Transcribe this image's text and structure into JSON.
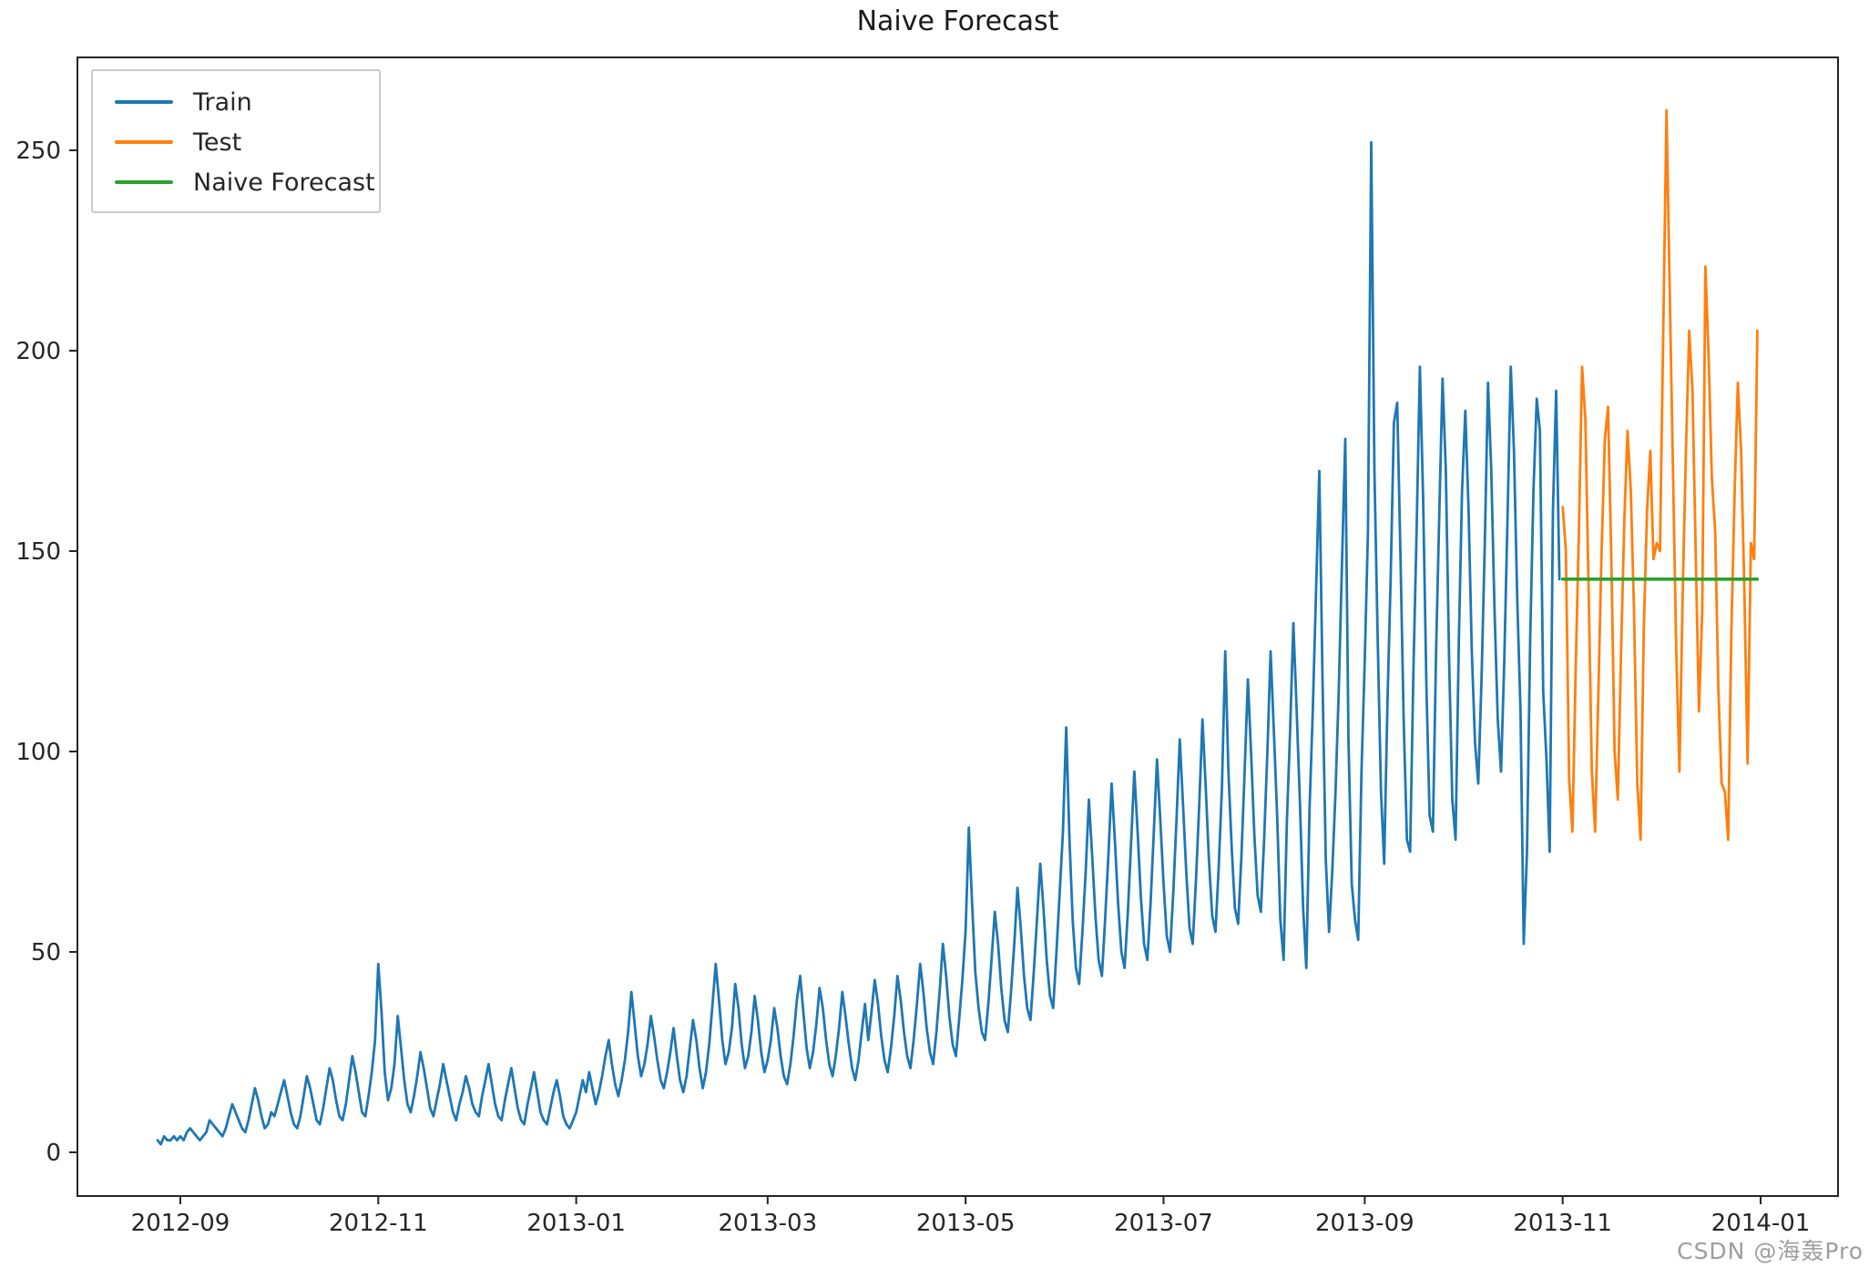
{
  "title": "Naive Forecast",
  "watermark": "CSDN @海轰Pro",
  "legend": {
    "items": [
      {
        "label": "Train",
        "color": "#1f77b4"
      },
      {
        "label": "Test",
        "color": "#ff7f0e"
      },
      {
        "label": "Naive Forecast",
        "color": "#2ca02c"
      }
    ]
  },
  "chart_data": {
    "type": "line",
    "title": "Naive Forecast",
    "xlabel": "",
    "ylabel": "",
    "grid": false,
    "legend_position": "upper left",
    "x_axis": {
      "start_date": "2012-08-25",
      "tick_labels": [
        "2012-09",
        "2012-11",
        "2013-01",
        "2013-03",
        "2013-05",
        "2013-07",
        "2013-09",
        "2013-11",
        "2014-01"
      ],
      "tick_day_offsets": [
        7,
        68,
        129,
        188,
        249,
        310,
        372,
        433,
        494
      ]
    },
    "y_axis": {
      "ticks": [
        0,
        50,
        100,
        150,
        200,
        250
      ],
      "ylim": [
        -11,
        273
      ]
    },
    "series": [
      {
        "name": "Train",
        "color": "#1f77b4",
        "start_day": 0,
        "values": [
          3,
          2,
          4,
          3,
          3,
          4,
          3,
          4,
          3,
          5,
          6,
          5,
          4,
          3,
          4,
          5,
          8,
          7,
          6,
          5,
          4,
          6,
          9,
          12,
          10,
          8,
          6,
          5,
          8,
          12,
          16,
          13,
          9,
          6,
          7,
          10,
          9,
          12,
          15,
          18,
          14,
          10,
          7,
          6,
          9,
          14,
          19,
          16,
          12,
          8,
          7,
          11,
          16,
          21,
          18,
          13,
          9,
          8,
          12,
          18,
          24,
          20,
          15,
          10,
          9,
          14,
          20,
          28,
          47,
          35,
          20,
          13,
          16,
          22,
          34,
          26,
          18,
          12,
          10,
          14,
          19,
          25,
          21,
          16,
          11,
          9,
          13,
          17,
          22,
          18,
          14,
          10,
          8,
          12,
          15,
          19,
          16,
          12,
          10,
          9,
          14,
          18,
          22,
          17,
          12,
          9,
          8,
          13,
          17,
          21,
          16,
          11,
          8,
          7,
          12,
          16,
          20,
          15,
          10,
          8,
          7,
          11,
          15,
          18,
          14,
          9,
          7,
          6,
          8,
          10,
          14,
          18,
          15,
          20,
          16,
          12,
          15,
          19,
          24,
          28,
          22,
          17,
          14,
          18,
          23,
          30,
          40,
          32,
          24,
          19,
          22,
          27,
          34,
          29,
          23,
          18,
          16,
          20,
          25,
          31,
          24,
          18,
          15,
          19,
          26,
          33,
          28,
          21,
          16,
          20,
          27,
          37,
          47,
          38,
          28,
          22,
          25,
          31,
          42,
          36,
          27,
          21,
          24,
          30,
          39,
          33,
          25,
          20,
          23,
          28,
          36,
          31,
          24,
          19,
          17,
          22,
          29,
          38,
          44,
          35,
          26,
          21,
          25,
          32,
          41,
          36,
          28,
          22,
          19,
          24,
          31,
          40,
          34,
          27,
          21,
          18,
          23,
          30,
          37,
          28,
          35,
          43,
          37,
          29,
          23,
          20,
          26,
          34,
          44,
          38,
          30,
          24,
          21,
          28,
          37,
          47,
          40,
          31,
          25,
          22,
          30,
          40,
          52,
          44,
          34,
          27,
          24,
          33,
          43,
          55,
          81,
          62,
          45,
          36,
          30,
          28,
          37,
          48,
          60,
          52,
          41,
          33,
          30,
          40,
          52,
          66,
          56,
          44,
          36,
          33,
          45,
          58,
          72,
          61,
          48,
          39,
          36,
          50,
          65,
          80,
          106,
          78,
          58,
          46,
          42,
          55,
          70,
          88,
          74,
          59,
          48,
          44,
          58,
          74,
          92,
          78,
          62,
          50,
          46,
          60,
          77,
          95,
          80,
          64,
          52,
          48,
          62,
          80,
          98,
          83,
          67,
          54,
          50,
          65,
          83,
          103,
          87,
          70,
          56,
          52,
          68,
          87,
          108,
          91,
          73,
          59,
          55,
          71,
          91,
          125,
          95,
          76,
          61,
          57,
          74,
          95,
          118,
          99,
          79,
          64,
          60,
          78,
          100,
          125,
          105,
          84,
          58,
          48,
          82,
          105,
          132,
          111,
          88,
          61,
          46,
          86,
          110,
          140,
          170,
          118,
          73,
          55,
          70,
          90,
          115,
          147,
          178,
          103,
          67,
          58,
          53,
          95,
          122,
          155,
          252,
          170,
          128,
          90,
          72,
          112,
          143,
          182,
          187,
          150,
          108,
          78,
          75,
          120,
          155,
          196,
          163,
          117,
          84,
          80,
          125,
          160,
          193,
          170,
          123,
          88,
          78,
          128,
          165,
          185,
          160,
          125,
          102,
          92,
          118,
          152,
          192,
          170,
          135,
          108,
          95,
          122,
          158,
          196,
          175,
          138,
          110,
          52,
          75,
          128,
          165,
          188,
          180,
          115,
          98,
          75,
          160,
          190,
          143
        ]
      },
      {
        "name": "Test",
        "color": "#ff7f0e",
        "start_day": 433,
        "values": [
          161,
          150,
          93,
          80,
          120,
          155,
          196,
          183,
          140,
          95,
          80,
          115,
          150,
          178,
          186,
          148,
          100,
          88,
          125,
          158,
          180,
          165,
          135,
          92,
          78,
          130,
          160,
          175,
          148,
          152,
          150,
          205,
          260,
          215,
          170,
          125,
          95,
          140,
          175,
          205,
          190,
          150,
          110,
          135,
          221,
          198,
          168,
          155,
          115,
          92,
          90,
          78,
          130,
          165,
          192,
          175,
          140,
          97,
          152,
          148,
          205
        ]
      },
      {
        "name": "Naive Forecast",
        "color": "#2ca02c",
        "start_day": 433,
        "end_day": 493,
        "constant_value": 143
      }
    ]
  }
}
